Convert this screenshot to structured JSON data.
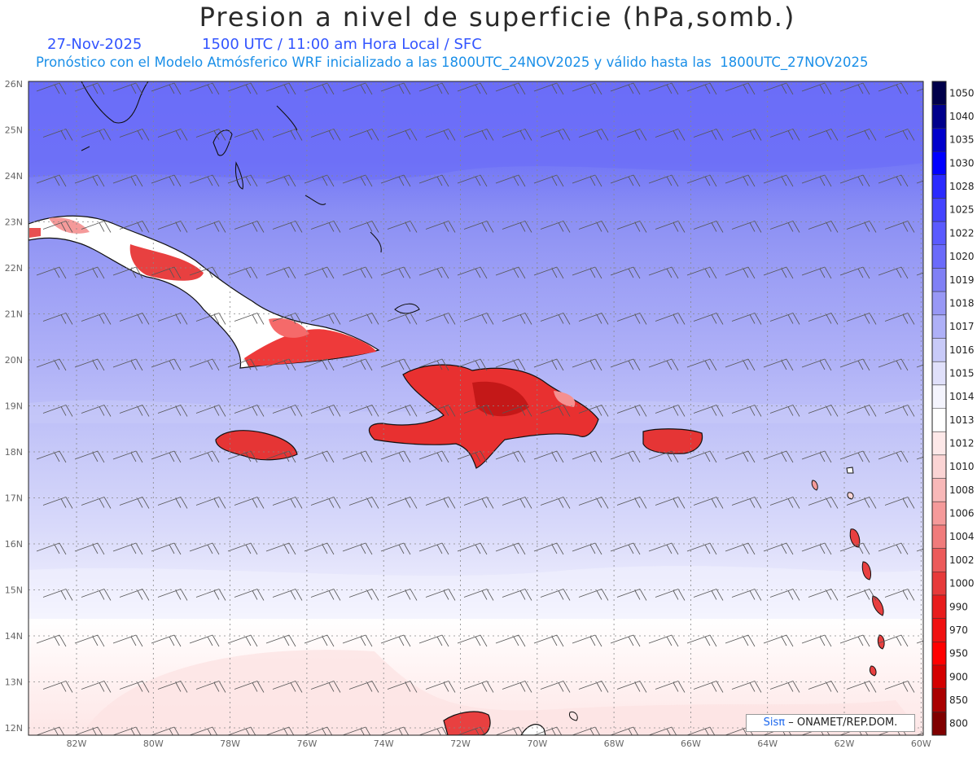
{
  "header": {
    "title": "Presion a nivel de superficie (hPa,somb.)",
    "date": "27-Nov-2025",
    "time_line": "1500 UTC / 11:00 am Hora Local / SFC",
    "model_line": "Pronóstico con el Modelo Atmósferico WRF inicializado a las 1800UTC_24NOV2025 y válido hasta las  1800UTC_27NOV2025"
  },
  "map": {
    "lon_labels": [
      "82W",
      "80W",
      "78W",
      "76W",
      "74W",
      "72W",
      "70W",
      "68W",
      "66W",
      "64W",
      "62W",
      "60W"
    ],
    "lat_labels": [
      "26N",
      "25N",
      "24N",
      "23N",
      "22N",
      "21N",
      "20N",
      "19N",
      "18N",
      "17N",
      "16N",
      "15N",
      "14N",
      "13N",
      "12N"
    ]
  },
  "colorbar": {
    "levels": [
      "1050",
      "1040",
      "1035",
      "1030",
      "1028",
      "1025",
      "1022",
      "1020",
      "1019",
      "1018",
      "1017",
      "1016",
      "1015",
      "1014",
      "1013",
      "1012",
      "1010",
      "1008",
      "1006",
      "1004",
      "1002",
      "1000",
      "990",
      "970",
      "950",
      "900",
      "850",
      "800"
    ],
    "colors": [
      "#00004a",
      "#00008c",
      "#0000cc",
      "#0000ff",
      "#2a2aff",
      "#4444ff",
      "#5a5aff",
      "#6a6afa",
      "#8080f5",
      "#9898f5",
      "#aeb0f7",
      "#c8caf8",
      "#e0e0fa",
      "#f4f4fd",
      "#ffffff",
      "#fde8e8",
      "#fbd4d4",
      "#f8b8b8",
      "#f59a9a",
      "#f07b7b",
      "#ec5a5a",
      "#e73a3a",
      "#e81c1c",
      "#f01010",
      "#ff0000",
      "#d40000",
      "#aa0000",
      "#800000"
    ]
  },
  "credit": {
    "brand": "Sisπ",
    "text": "– ONAMET/REP.DOM."
  }
}
